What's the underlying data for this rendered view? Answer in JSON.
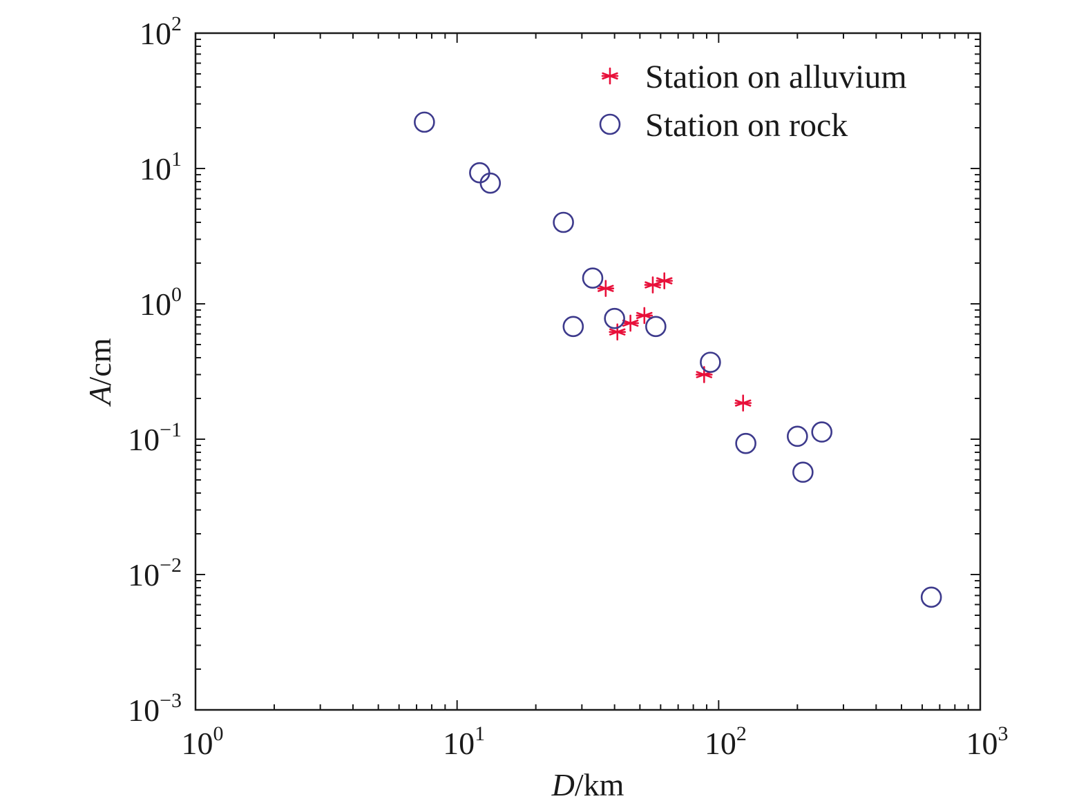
{
  "chart_data": {
    "type": "scatter",
    "x_scale": "log",
    "y_scale": "log",
    "xlim": [
      1,
      1000
    ],
    "ylim": [
      0.001,
      100
    ],
    "x_ticks": [
      {
        "base": "10",
        "exp": "0"
      },
      {
        "base": "10",
        "exp": "1"
      },
      {
        "base": "10",
        "exp": "2"
      },
      {
        "base": "10",
        "exp": "3"
      }
    ],
    "y_ticks": [
      {
        "base": "10",
        "exp": "−3"
      },
      {
        "base": "10",
        "exp": "−2"
      },
      {
        "base": "10",
        "exp": "−1"
      },
      {
        "base": "10",
        "exp": "0"
      },
      {
        "base": "10",
        "exp": "1"
      },
      {
        "base": "10",
        "exp": "2"
      }
    ],
    "xlabel": {
      "var": "D",
      "unit": "/km"
    },
    "ylabel": {
      "var": "A",
      "unit": "/cm"
    },
    "legend_position": "top-right",
    "series": [
      {
        "name": "Station on alluvium",
        "marker": "asterisk",
        "color": "#e8103a",
        "points": [
          {
            "x": 37,
            "y": 1.3
          },
          {
            "x": 41,
            "y": 0.62
          },
          {
            "x": 46,
            "y": 0.72
          },
          {
            "x": 52,
            "y": 0.82
          },
          {
            "x": 56,
            "y": 1.38
          },
          {
            "x": 62,
            "y": 1.48
          },
          {
            "x": 88,
            "y": 0.3
          },
          {
            "x": 124,
            "y": 0.185
          }
        ]
      },
      {
        "name": "Station on rock",
        "marker": "circle",
        "color": "#3d3a8c",
        "points": [
          {
            "x": 7.5,
            "y": 22
          },
          {
            "x": 12.2,
            "y": 9.3
          },
          {
            "x": 13.4,
            "y": 7.8
          },
          {
            "x": 25.5,
            "y": 4.0
          },
          {
            "x": 27.8,
            "y": 0.68
          },
          {
            "x": 33,
            "y": 1.55
          },
          {
            "x": 40,
            "y": 0.78
          },
          {
            "x": 57.5,
            "y": 0.68
          },
          {
            "x": 93,
            "y": 0.37
          },
          {
            "x": 127,
            "y": 0.093
          },
          {
            "x": 200,
            "y": 0.105
          },
          {
            "x": 210,
            "y": 0.057
          },
          {
            "x": 248,
            "y": 0.113
          },
          {
            "x": 650,
            "y": 0.0068
          }
        ]
      }
    ]
  }
}
